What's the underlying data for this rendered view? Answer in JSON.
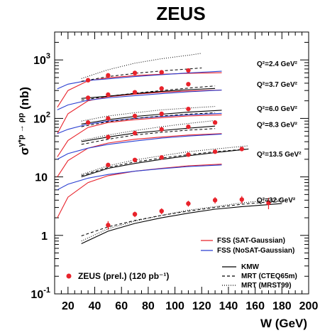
{
  "chart_data": {
    "type": "line",
    "title": "ZEUS",
    "xlabel": "W (GeV)",
    "ylabel": "σ^{γ*p → ρp} (nb)",
    "xlim": [
      10,
      200
    ],
    "ylim": [
      0.1,
      3000
    ],
    "yscale": "log",
    "x_tick_labels": [
      "20",
      "40",
      "60",
      "80",
      "100",
      "120",
      "140",
      "160",
      "180",
      "200"
    ],
    "y_tick_labels": [
      {
        "base": "10",
        "exp": "-1",
        "value": 0.1
      },
      {
        "base": "1",
        "exp": "",
        "value": 1
      },
      {
        "base": "10",
        "exp": "",
        "value": 10
      },
      {
        "base": "10",
        "exp": "2",
        "value": 100
      },
      {
        "base": "10",
        "exp": "3",
        "value": 1000
      }
    ],
    "q2_labels": [
      {
        "text": "Q²=2.4 GeV²",
        "y": 880
      },
      {
        "text": "Q²=3.7 GeV²",
        "y": 390
      },
      {
        "text": "Q²=6.0 GeV²",
        "y": 150
      },
      {
        "text": "Q²=8.3 GeV²",
        "y": 80
      },
      {
        "text": "Q²=13.5 GeV²",
        "y": 25
      },
      {
        "text": "Q²=32 GeV²",
        "y": 4.1
      }
    ],
    "legend": {
      "placement": "bottom-right",
      "fss_sat": "FSS (SAT-Gaussian)",
      "fss_nosat": "FSS (NoSAT-Gaussian)",
      "kmw": "KMW",
      "mrt_cteq": "MRT (CTEQ65m)",
      "mrt_mrst": "MRT (MRST99)",
      "data": "ZEUS (prel.) (120 pb⁻¹)"
    },
    "colors": {
      "data": "#e8232b",
      "fss_sat": "#e8232b",
      "fss_nosat": "#2a3fd1",
      "kmw": "#000000",
      "mrt": "#000000"
    },
    "series": [
      {
        "name": "ZEUS (prel.) (120 pb⁻¹)",
        "q2": "2.4",
        "x": [
          35,
          50,
          70,
          90,
          110
        ],
        "y": [
          450,
          545,
          600,
          615,
          660
        ]
      },
      {
        "name": "ZEUS (prel.) (120 pb⁻¹)",
        "q2": "3.7",
        "x": [
          35,
          50,
          70,
          90,
          110
        ],
        "y": [
          225,
          255,
          280,
          325,
          385
        ]
      },
      {
        "name": "ZEUS (prel.) (120 pb⁻¹)",
        "q2": "6.0",
        "x": [
          35,
          50,
          70,
          90,
          110
        ],
        "y": [
          85,
          100,
          110,
          120,
          145
        ]
      },
      {
        "name": "ZEUS (prel.) (120 pb⁻¹)",
        "q2": "8.3",
        "x": [
          50,
          70,
          90,
          110,
          130
        ],
        "y": [
          48,
          56,
          65,
          72,
          85
        ]
      },
      {
        "name": "ZEUS (prel.) (120 pb⁻¹)",
        "q2": "13.5",
        "x": [
          50,
          70,
          90,
          110,
          130,
          150
        ],
        "y": [
          16,
          19.5,
          21.5,
          24,
          27,
          30
        ]
      },
      {
        "name": "ZEUS (prel.) (120 pb⁻¹)",
        "q2": "32",
        "x": [
          50,
          70,
          90,
          110,
          130,
          150,
          170
        ],
        "y": [
          1.5,
          2.3,
          2.6,
          3.5,
          4.0,
          4.1,
          3.6
        ],
        "err": [
          0.25,
          0.25,
          0.3,
          0.4,
          0.5,
          0.6,
          0.8
        ]
      },
      {
        "name": "FSS (SAT-Gaussian)",
        "q2": "2.4",
        "x": [
          12,
          20,
          35,
          50,
          70,
          90,
          110,
          135
        ],
        "y": [
          155,
          300,
          440,
          495,
          540,
          570,
          590,
          605
        ]
      },
      {
        "name": "FSS (NoSAT-Gaussian)",
        "q2": "2.4",
        "x": [
          12,
          20,
          35,
          50,
          70,
          90,
          110,
          135
        ],
        "y": [
          320,
          385,
          445,
          475,
          520,
          560,
          600,
          640
        ]
      },
      {
        "name": "FSS (SAT-Gaussian)",
        "q2": "3.7",
        "x": [
          12,
          20,
          35,
          50,
          70,
          90,
          110,
          135
        ],
        "y": [
          55,
          120,
          200,
          235,
          260,
          280,
          295,
          305
        ]
      },
      {
        "name": "FSS (NoSAT-Gaussian)",
        "q2": "3.7",
        "x": [
          12,
          20,
          35,
          50,
          70,
          90,
          110,
          135
        ],
        "y": [
          140,
          170,
          205,
          225,
          245,
          265,
          285,
          305
        ]
      },
      {
        "name": "FSS (SAT-Gaussian)",
        "q2": "6.0",
        "x": [
          12,
          20,
          35,
          50,
          70,
          90,
          110,
          135
        ],
        "y": [
          22,
          42,
          70,
          85,
          95,
          103,
          110,
          115
        ]
      },
      {
        "name": "FSS (NoSAT-Gaussian)",
        "q2": "6.0",
        "x": [
          12,
          20,
          35,
          50,
          70,
          90,
          110,
          135
        ],
        "y": [
          55,
          65,
          80,
          90,
          100,
          108,
          115,
          122
        ]
      },
      {
        "name": "FSS (SAT-Gaussian)",
        "q2": "8.3",
        "x": [
          12,
          20,
          35,
          50,
          70,
          90,
          110,
          135
        ],
        "y": [
          10,
          19,
          31,
          38,
          44,
          48,
          52,
          55
        ]
      },
      {
        "name": "FSS (NoSAT-Gaussian)",
        "q2": "8.3",
        "x": [
          12,
          20,
          35,
          50,
          70,
          90,
          110,
          135
        ],
        "y": [
          20,
          25,
          31,
          36,
          41,
          46,
          50,
          54
        ]
      },
      {
        "name": "FSS (SAT-Gaussian)",
        "q2": "13.5",
        "x": [
          12,
          20,
          35,
          50,
          70,
          90,
          110,
          135
        ],
        "y": [
          2.0,
          4.5,
          8,
          10.5,
          12.5,
          14,
          15.5,
          16.5
        ]
      },
      {
        "name": "FSS (NoSAT-Gaussian)",
        "q2": "13.5",
        "x": [
          12,
          20,
          35,
          50,
          70,
          90,
          110,
          135
        ],
        "y": [
          6,
          7.5,
          9.5,
          11,
          12.5,
          13.8,
          15,
          16
        ]
      },
      {
        "name": "KMW",
        "q2": "3.7",
        "x": [
          30,
          50,
          70,
          90,
          110,
          130
        ],
        "y": [
          220,
          240,
          265,
          290,
          310,
          325
        ]
      },
      {
        "name": "MRT (CTEQ65m)",
        "q2": "3.7",
        "x": [
          30,
          50,
          70,
          90,
          110,
          130
        ],
        "y": [
          205,
          240,
          270,
          300,
          330,
          360
        ]
      },
      {
        "name": "MRT (MRST99)",
        "q2": "2.4",
        "x": [
          30,
          50,
          70,
          90,
          110,
          120
        ],
        "y": [
          480,
          680,
          880,
          1050,
          1200,
          1300
        ]
      },
      {
        "name": "MRT (CTEQ65m)",
        "q2": "2.4",
        "x": [
          30,
          50,
          70,
          90,
          110,
          120
        ],
        "y": [
          430,
          520,
          590,
          650,
          700,
          730
        ]
      },
      {
        "name": "KMW",
        "q2": "6.0",
        "x": [
          30,
          50,
          70,
          90,
          110,
          135
        ],
        "y": [
          80,
          95,
          108,
          118,
          128,
          138
        ]
      },
      {
        "name": "MRT (CTEQ65m)",
        "q2": "6.0",
        "x": [
          30,
          50,
          70,
          90,
          110,
          130
        ],
        "y": [
          72,
          88,
          100,
          110,
          118,
          125
        ]
      },
      {
        "name": "MRT (MRST99)",
        "q2": "6.0",
        "x": [
          30,
          50,
          70,
          90,
          110,
          130
        ],
        "y": [
          90,
          110,
          125,
          140,
          150,
          160
        ]
      },
      {
        "name": "KMW",
        "q2": "8.3",
        "x": [
          30,
          50,
          70,
          90,
          110,
          130
        ],
        "y": [
          40,
          48,
          56,
          62,
          68,
          74
        ]
      },
      {
        "name": "MRT (CTEQ65m)",
        "q2": "8.3",
        "x": [
          30,
          50,
          70,
          90,
          110,
          130
        ],
        "y": [
          36,
          44,
          52,
          58,
          63,
          67
        ]
      },
      {
        "name": "MRT (MRST99)",
        "q2": "8.3",
        "x": [
          30,
          50,
          70,
          90,
          110,
          130
        ],
        "y": [
          42,
          52,
          62,
          72,
          82,
          92
        ]
      },
      {
        "name": "KMW",
        "q2": "13.5",
        "x": [
          30,
          50,
          70,
          90,
          110,
          130,
          155
        ],
        "y": [
          10,
          14,
          17,
          20,
          23,
          26,
          30
        ]
      },
      {
        "name": "MRT (CTEQ65m)",
        "q2": "13.5",
        "x": [
          30,
          50,
          70,
          90,
          110,
          130,
          155
        ],
        "y": [
          10.5,
          14.5,
          18,
          21,
          24,
          27,
          30
        ]
      },
      {
        "name": "MRT (MRST99)",
        "q2": "13.5",
        "x": [
          30,
          50,
          70,
          90,
          110,
          130,
          155
        ],
        "y": [
          11,
          15.5,
          19.5,
          23,
          27,
          30,
          34
        ]
      },
      {
        "name": "KMW",
        "q2": "32",
        "x": [
          30,
          50,
          70,
          90,
          110,
          130,
          150,
          180
        ],
        "y": [
          0.72,
          1.18,
          1.6,
          2.0,
          2.4,
          2.8,
          3.1,
          3.5
        ]
      },
      {
        "name": "MRT (CTEQ65m)",
        "q2": "32",
        "x": [
          30,
          50,
          70,
          90,
          110,
          130,
          150,
          180
        ],
        "y": [
          0.98,
          1.4,
          1.8,
          2.2,
          2.6,
          3.0,
          3.4,
          3.9
        ]
      },
      {
        "name": "MRT (MRST99)",
        "q2": "32",
        "x": [
          30,
          50,
          70,
          90,
          110,
          130,
          150,
          180
        ],
        "y": [
          0.8,
          1.3,
          1.75,
          2.2,
          2.7,
          3.1,
          3.6,
          4.2
        ]
      }
    ]
  }
}
